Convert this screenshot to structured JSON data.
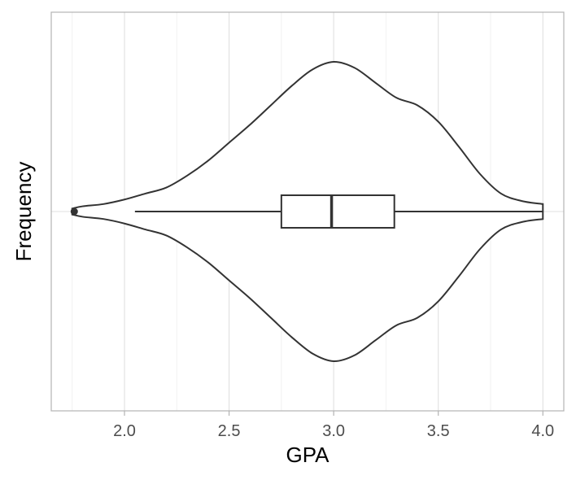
{
  "chart_data": {
    "type": "violin",
    "title": "",
    "xlabel": "GPA",
    "ylabel": "Frequency",
    "xlim": [
      1.65,
      4.1
    ],
    "x_ticks": [
      2.0,
      2.5,
      3.0,
      3.5,
      4.0
    ],
    "x_tick_labels": [
      "2.0",
      "2.5",
      "3.0",
      "3.5",
      "4.0"
    ],
    "grid": true,
    "violin": {
      "density": [
        [
          1.75,
          0.02
        ],
        [
          1.8,
          0.035
        ],
        [
          1.9,
          0.05
        ],
        [
          2.0,
          0.08
        ],
        [
          2.1,
          0.12
        ],
        [
          2.2,
          0.16
        ],
        [
          2.3,
          0.24
        ],
        [
          2.4,
          0.34
        ],
        [
          2.5,
          0.46
        ],
        [
          2.6,
          0.58
        ],
        [
          2.7,
          0.71
        ],
        [
          2.8,
          0.84
        ],
        [
          2.9,
          0.95
        ],
        [
          3.0,
          1.0
        ],
        [
          3.1,
          0.96
        ],
        [
          3.2,
          0.86
        ],
        [
          3.3,
          0.76
        ],
        [
          3.4,
          0.71
        ],
        [
          3.5,
          0.6
        ],
        [
          3.6,
          0.43
        ],
        [
          3.7,
          0.25
        ],
        [
          3.8,
          0.12
        ],
        [
          3.9,
          0.07
        ],
        [
          4.0,
          0.05
        ]
      ]
    },
    "boxplot": {
      "whisker_low": 2.05,
      "q1": 2.75,
      "median": 2.99,
      "q3": 3.29,
      "whisker_high": 4.0,
      "outliers": [
        1.76
      ]
    }
  }
}
